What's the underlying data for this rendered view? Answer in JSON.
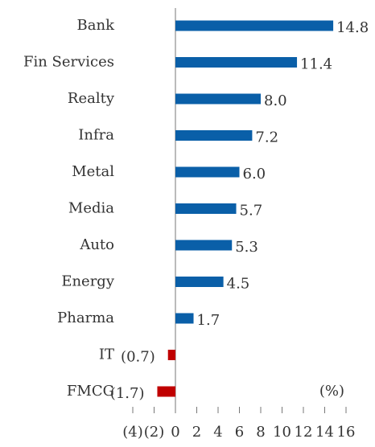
{
  "chart_data": {
    "type": "barh",
    "categories": [
      "Bank",
      "Fin Services",
      "Realty",
      "Infra",
      "Metal",
      "Media",
      "Auto",
      "Energy",
      "Pharma",
      "IT",
      "FMCG"
    ],
    "values": [
      14.8,
      11.4,
      8.0,
      7.2,
      6.0,
      5.7,
      5.3,
      4.5,
      1.7,
      -0.7,
      -1.7
    ],
    "value_labels": [
      "14.8",
      "11.4",
      "8.0",
      "7.2",
      "6.0",
      "5.7",
      "5.3",
      "4.5",
      "1.7",
      "(0.7)",
      "(1.7)"
    ],
    "color": "#0a5fa8",
    "negative_color": "#c00000",
    "xlim": [
      -4,
      16
    ],
    "xticks": [
      {
        "value": -4,
        "label": "(4)"
      },
      {
        "value": -2,
        "label": "(2)"
      },
      0,
      2,
      4,
      6,
      8,
      10,
      12,
      14,
      16
    ],
    "annotation": "(%)"
  }
}
